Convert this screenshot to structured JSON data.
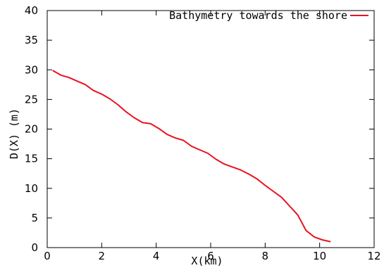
{
  "chart_data": {
    "type": "line",
    "title": "",
    "xlabel": "X(km)",
    "ylabel": "D(X) (m)",
    "xlim": [
      0,
      12
    ],
    "ylim": [
      0,
      40
    ],
    "xticks": [
      0,
      2,
      4,
      6,
      8,
      10,
      12
    ],
    "yticks": [
      0,
      5,
      10,
      15,
      20,
      25,
      30,
      35,
      40
    ],
    "grid": false,
    "legend_position": "top-right",
    "series": [
      {
        "name": "Bathymetry towards the shore",
        "color": "#e8121f",
        "x": [
          0.2,
          0.5,
          0.8,
          1.1,
          1.4,
          1.7,
          2.0,
          2.3,
          2.6,
          2.9,
          3.2,
          3.5,
          3.8,
          4.1,
          4.4,
          4.7,
          5.0,
          5.3,
          5.6,
          5.9,
          6.2,
          6.5,
          6.8,
          7.1,
          7.4,
          7.7,
          8.0,
          8.3,
          8.6,
          8.9,
          9.2,
          9.5,
          9.8,
          10.1,
          10.4
        ],
        "y": [
          29.9,
          29.1,
          28.7,
          28.1,
          27.5,
          26.5,
          25.9,
          25.1,
          24.1,
          22.9,
          21.9,
          21.1,
          20.9,
          20.1,
          19.1,
          18.5,
          18.1,
          17.1,
          16.5,
          15.9,
          14.9,
          14.1,
          13.6,
          13.1,
          12.4,
          11.6,
          10.5,
          9.5,
          8.5,
          7.0,
          5.5,
          2.9,
          1.8,
          1.3,
          1.0
        ]
      }
    ]
  }
}
